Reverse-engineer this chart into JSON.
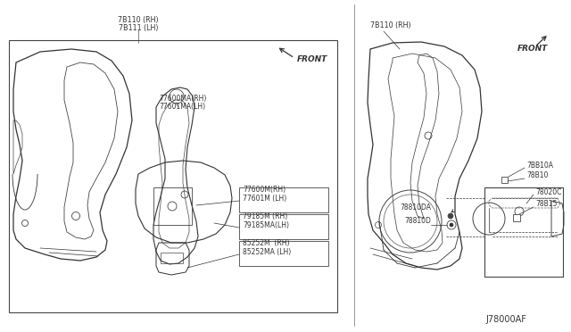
{
  "bg_color": "#ffffff",
  "fig_width": 6.4,
  "fig_height": 3.72,
  "dpi": 100,
  "footer_text": "J78000AF",
  "labels": {
    "7B110_RH": "7B110 (RH)",
    "7B111_LH": "7B111 (LH)",
    "77600MA_RH": "77600MA(RH)",
    "77601MA_LH": "77601MA(LH)",
    "77600M_RH": "77600M(RH)",
    "77601M_LH": "77601M (LH)",
    "79185M_RH": "79185M (RH)",
    "79185MA_LH": "79185MA(LH)",
    "85252M_RH": "85252M  (RH)",
    "85252MA_LH": "85252MA (LH)",
    "7B110_RH_r": "7B110 (RH)",
    "7BB10A": "7BB10A",
    "78B10": "78B10",
    "78020C": "78020C",
    "78B15": "78B15",
    "78810DA": "78810DA",
    "78810D": "78810D",
    "front": "FRONT",
    "front2": "FRONT"
  },
  "lc": "#333333",
  "tc": "#333333"
}
